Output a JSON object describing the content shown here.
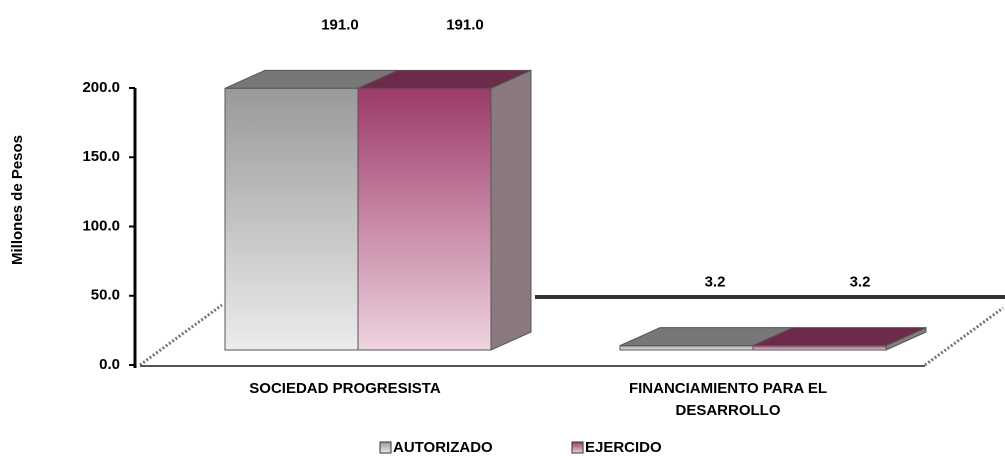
{
  "chart_data": {
    "type": "bar3d",
    "y_label": "Millones de Pesos",
    "categories": [
      "SOCIEDAD PROGRESISTA",
      "FINANCIAMIENTO PARA EL DESARROLLO"
    ],
    "series": [
      {
        "name": "AUTORIZADO",
        "color": "#999999",
        "values": [
          191.0,
          3.2
        ],
        "value_labels": [
          "191.0",
          "3.2"
        ]
      },
      {
        "name": "EJERCIDO",
        "color": "#9c3a6a",
        "values": [
          191.0,
          3.2
        ],
        "value_labels": [
          "191.0",
          "3.2"
        ]
      }
    ],
    "ylim": [
      0,
      200
    ],
    "yticks": [
      {
        "value": 0,
        "label": "0.0"
      },
      {
        "value": 50,
        "label": "50.0"
      },
      {
        "value": 100,
        "label": "100.0"
      },
      {
        "value": 150,
        "label": "150.0"
      },
      {
        "value": 200,
        "label": "200.0"
      }
    ],
    "legend": "bottom"
  }
}
